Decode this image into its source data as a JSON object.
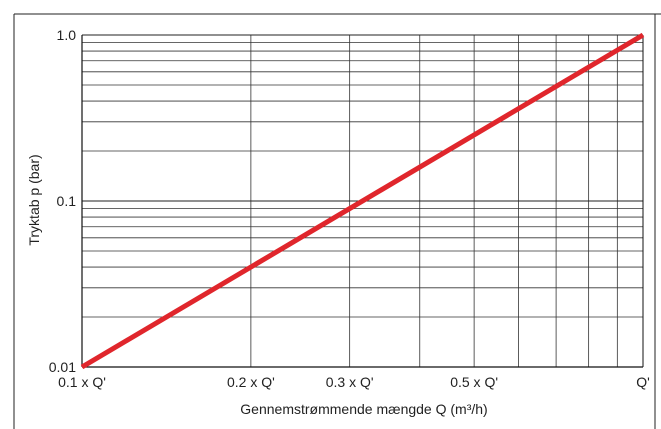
{
  "chart_data": {
    "type": "line",
    "title": "",
    "xlabel": "Gennemstrømmende mængde Q (m³/h)",
    "ylabel": "Tryktab p (bar)",
    "x_scale": "log",
    "y_scale": "log",
    "xlim": [
      0.1,
      1.0
    ],
    "ylim": [
      0.01,
      1.0
    ],
    "grid": true,
    "x_ticks": [
      {
        "value": 0.1,
        "label": "0.1 x Q'"
      },
      {
        "value": 0.2,
        "label": "0.2 x Q'"
      },
      {
        "value": 0.3,
        "label": "0.3 x Q'"
      },
      {
        "value": 0.5,
        "label": "0.5 x Q'"
      },
      {
        "value": 1.0,
        "label": "Q'"
      }
    ],
    "y_ticks": [
      {
        "value": 1.0,
        "label": "1.0"
      },
      {
        "value": 0.1,
        "label": "0.1"
      },
      {
        "value": 0.01,
        "label": "0.01"
      }
    ],
    "series": [
      {
        "color": "#e0262c",
        "x": [
          0.1,
          1.0
        ],
        "y": [
          0.01,
          1.0
        ]
      }
    ]
  }
}
